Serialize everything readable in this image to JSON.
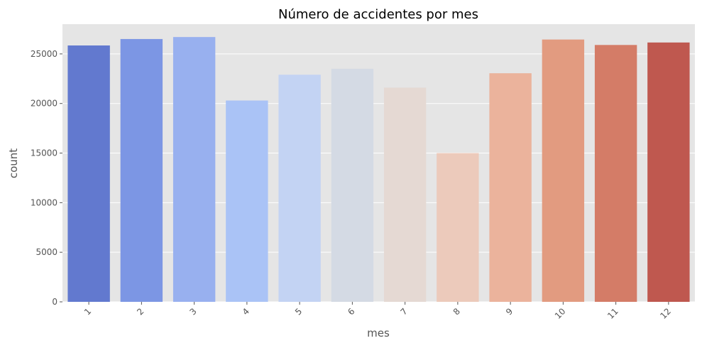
{
  "chart_data": {
    "type": "bar",
    "title": "Número de accidentes por mes",
    "xlabel": "mes",
    "ylabel": "count",
    "categories": [
      "1",
      "2",
      "3",
      "4",
      "5",
      "6",
      "7",
      "8",
      "9",
      "10",
      "11",
      "12"
    ],
    "values": [
      25850,
      26500,
      26700,
      20300,
      22900,
      23500,
      21600,
      15000,
      23050,
      26450,
      25900,
      26150
    ],
    "ylim": [
      0,
      28000
    ],
    "yticks": [
      0,
      5000,
      10000,
      15000,
      20000,
      25000
    ],
    "yticks_labels": [
      "0",
      "5000",
      "10000",
      "15000",
      "20000",
      "25000"
    ],
    "grid": true,
    "x_tick_rotation_deg": 45,
    "colors": [
      "#6279cf",
      "#7c96e4",
      "#98b0ef",
      "#aac3f6",
      "#c3d3f3",
      "#d4dae4",
      "#e5d9d3",
      "#eccabb",
      "#ebb39c",
      "#e29b80",
      "#d47c67",
      "#bf584f"
    ],
    "background_color": "#e5e5e5",
    "grid_color": "#ffffff"
  }
}
